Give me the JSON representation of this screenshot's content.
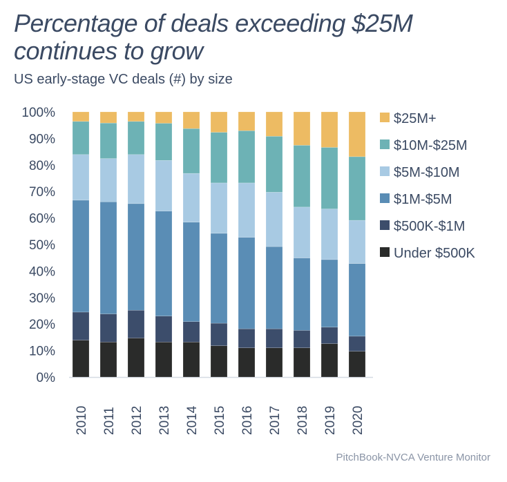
{
  "title_line1": "Percentage of deals exceeding $25M",
  "title_line2": "continues to grow",
  "subtitle": "US early-stage VC deals (#) by size",
  "source": "PitchBook-NVCA Venture Monitor",
  "chart_data": {
    "type": "bar",
    "stacked": true,
    "title": "Percentage of deals exceeding $25M continues to grow",
    "subtitle": "US early-stage VC deals (#) by size",
    "categories": [
      "2010",
      "2011",
      "2012",
      "2013",
      "2014",
      "2015",
      "2016",
      "2017",
      "2018",
      "2019",
      "2020"
    ],
    "ylim": [
      0,
      100
    ],
    "yticks": [
      "0%",
      "10%",
      "20%",
      "30%",
      "40%",
      "50%",
      "60%",
      "70%",
      "80%",
      "90%",
      "100%"
    ],
    "legend_position": "right",
    "series": [
      {
        "name": "Under $500K",
        "color": "#2a2b2a",
        "values": [
          13.9,
          13.2,
          14.7,
          13.2,
          13.2,
          11.8,
          11.0,
          11.0,
          11.0,
          12.6,
          9.7
        ]
      },
      {
        "name": "$500K-$1M",
        "color": "#3c4d6b",
        "values": [
          10.6,
          10.6,
          10.5,
          9.8,
          7.7,
          8.5,
          7.2,
          7.2,
          6.6,
          6.2,
          5.7
        ]
      },
      {
        "name": "$1M-$5M",
        "color": "#5a8db5",
        "values": [
          42.2,
          42.3,
          40.2,
          39.6,
          37.5,
          33.9,
          34.5,
          31.0,
          27.3,
          25.5,
          27.4
        ]
      },
      {
        "name": "$5M-$10M",
        "color": "#a8cae3",
        "values": [
          17.2,
          16.3,
          18.5,
          19.1,
          18.4,
          19.0,
          20.5,
          20.5,
          19.2,
          19.1,
          16.3
        ]
      },
      {
        "name": "$10M-$25M",
        "color": "#6db2b5",
        "values": [
          12.5,
          13.4,
          12.5,
          14.0,
          16.9,
          19.1,
          19.7,
          21.1,
          23.3,
          23.2,
          24.0
        ]
      },
      {
        "name": "$25M+",
        "color": "#edbb63",
        "values": [
          3.6,
          4.2,
          3.6,
          4.3,
          6.3,
          7.7,
          7.1,
          9.2,
          12.6,
          13.4,
          16.9
        ]
      }
    ]
  }
}
